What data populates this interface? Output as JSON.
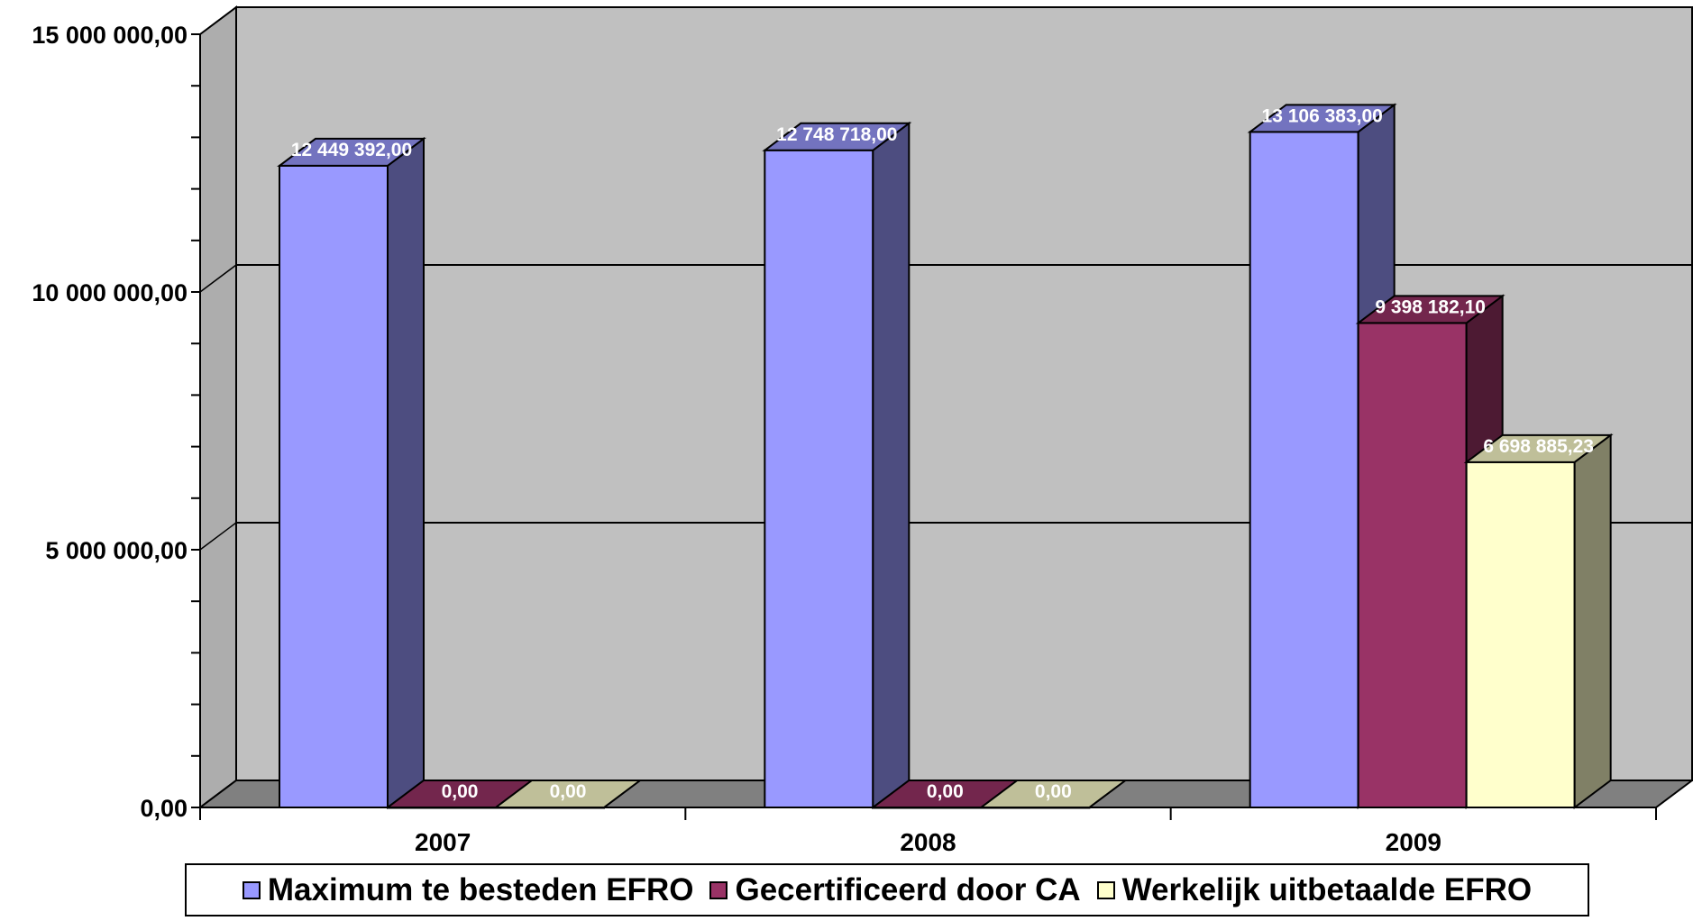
{
  "chart_data": {
    "type": "bar",
    "categories": [
      "2007",
      "2008",
      "2009"
    ],
    "series": [
      {
        "name": "Maximum te besteden EFRO",
        "values": [
          12449392.0,
          12748718.0,
          13106383.0
        ],
        "labels": [
          "12 449 392,00",
          "12 748 718,00",
          "13 106 383,00"
        ],
        "color": "#9999FF"
      },
      {
        "name": "Gecertificeerd door CA",
        "values": [
          0,
          0,
          9398182.1
        ],
        "labels": [
          "0,00",
          "0,00",
          "9 398 182,10"
        ],
        "color": "#993366"
      },
      {
        "name": "Werkelijk uitbetaalde EFRO",
        "values": [
          0,
          0,
          6698885.23
        ],
        "labels": [
          "0,00",
          "0,00",
          "6 698 885,23"
        ],
        "color": "#FFFFCC"
      }
    ],
    "y_tick_labels": [
      "0,00",
      "5 000 000,00",
      "10 000 000,00",
      "15 000 000,00"
    ],
    "y_tick_values": [
      0,
      5000000,
      10000000,
      15000000
    ],
    "ylim": [
      0,
      15000000
    ],
    "grid": true,
    "legend": "bottom",
    "wall_color": "#C0C0C0",
    "floor_color": "#808080"
  }
}
